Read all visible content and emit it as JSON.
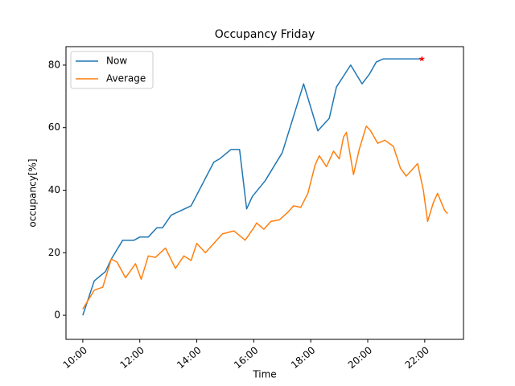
{
  "chart_data": {
    "type": "line",
    "title": "Occupancy Friday",
    "x_label": "Time",
    "y_label": "occupancy[%]",
    "xlim": [
      9.41,
      23.36
    ],
    "ylim": [
      -7.7,
      85.9
    ],
    "xticks": [
      {
        "value": 10,
        "label": "10:00"
      },
      {
        "value": 12,
        "label": "12:00"
      },
      {
        "value": 14,
        "label": "14:00"
      },
      {
        "value": 16,
        "label": "16:00"
      },
      {
        "value": 18,
        "label": "18:00"
      },
      {
        "value": 20,
        "label": "20:00"
      },
      {
        "value": 22,
        "label": "22:00"
      }
    ],
    "yticks": [
      0,
      20,
      40,
      60,
      80
    ],
    "legend": "upper left",
    "series": [
      {
        "name": "Now",
        "color": "#1f77b4",
        "end_marker_color": "#ff0000",
        "x": [
          10.0,
          10.4,
          10.8,
          11.0,
          11.4,
          11.8,
          12.0,
          12.3,
          12.6,
          12.8,
          13.1,
          13.8,
          14.6,
          14.8,
          15.2,
          15.5,
          15.75,
          15.95,
          16.4,
          17.0,
          17.75,
          18.25,
          18.65,
          18.9,
          19.4,
          19.8,
          20.05,
          20.3,
          20.55,
          21.9
        ],
        "values": [
          0,
          11,
          14,
          18,
          24,
          24,
          25,
          25,
          28,
          28,
          32,
          35,
          49,
          50,
          53,
          53,
          34,
          38,
          43,
          52,
          74,
          59,
          63,
          73,
          80,
          74,
          77,
          81,
          82,
          82
        ]
      },
      {
        "name": "Average",
        "color": "#ff7f0e",
        "x": [
          10.0,
          10.4,
          10.7,
          11.0,
          11.2,
          11.5,
          11.85,
          12.05,
          12.3,
          12.55,
          12.9,
          13.25,
          13.55,
          13.8,
          14.0,
          14.3,
          14.6,
          14.9,
          15.3,
          15.7,
          16.0,
          16.1,
          16.35,
          16.6,
          16.9,
          17.2,
          17.4,
          17.65,
          17.9,
          18.15,
          18.3,
          18.55,
          18.8,
          19.0,
          19.15,
          19.25,
          19.5,
          19.7,
          19.95,
          20.1,
          20.35,
          20.6,
          20.9,
          21.15,
          21.35,
          21.6,
          21.75,
          21.95,
          22.1,
          22.3,
          22.45,
          22.7,
          22.8
        ],
        "values": [
          2,
          8,
          9,
          18,
          17,
          12,
          16.5,
          11.5,
          19,
          18.5,
          21.5,
          15,
          19,
          17.5,
          23,
          20,
          23,
          26,
          27,
          24,
          28,
          29.5,
          27.5,
          30,
          30.5,
          33,
          35,
          34.5,
          39,
          48,
          51,
          47.5,
          52.5,
          50,
          57,
          58.5,
          45,
          53,
          60.5,
          59,
          55,
          56,
          54,
          47,
          44.5,
          47,
          48.5,
          40,
          30,
          36,
          39,
          33.5,
          32.5
        ]
      }
    ]
  }
}
